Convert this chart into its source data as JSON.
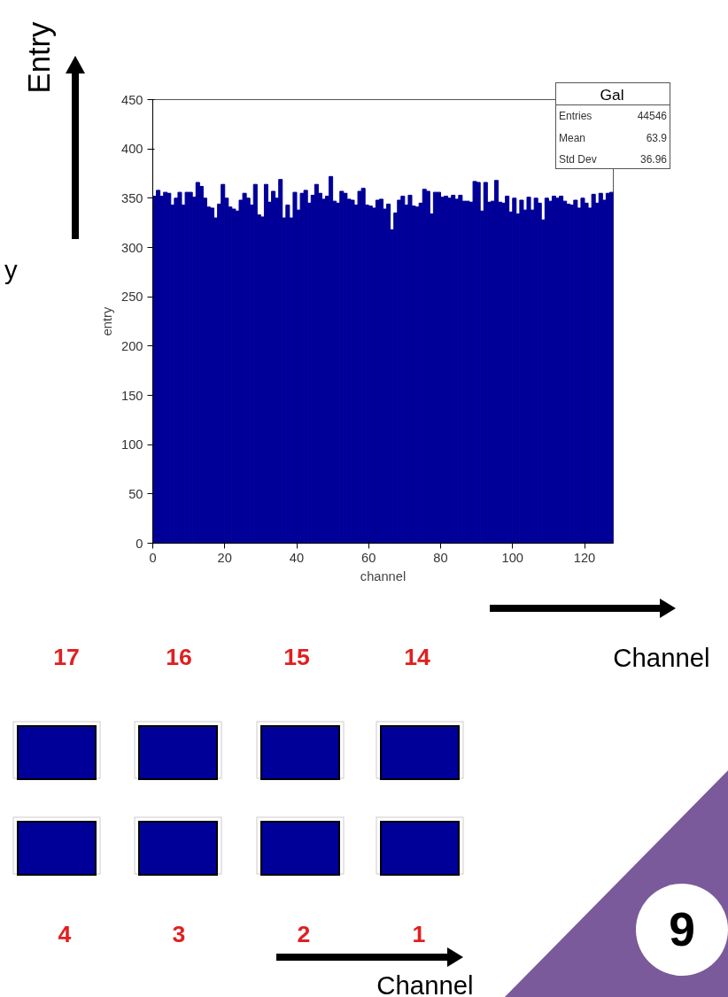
{
  "chart_data": {
    "type": "histogram",
    "xlabel": "channel",
    "ylabel": "entry",
    "color": "#000099",
    "grid": false,
    "bins": [
      0,
      1,
      2,
      3,
      4,
      5,
      6,
      7,
      8,
      9,
      10,
      11,
      12,
      13,
      14,
      15,
      16,
      17,
      18,
      19,
      20,
      21,
      22,
      23,
      24,
      25,
      26,
      27,
      28,
      29,
      30,
      31,
      32,
      33,
      34,
      35,
      36,
      37,
      38,
      39,
      40,
      41,
      42,
      43,
      44,
      45,
      46,
      47,
      48,
      49,
      50,
      51,
      52,
      53,
      54,
      55,
      56,
      57,
      58,
      59,
      60,
      61,
      62,
      63,
      64,
      65,
      66,
      67,
      68,
      69,
      70,
      71,
      72,
      73,
      74,
      75,
      76,
      77,
      78,
      79,
      80,
      81,
      82,
      83,
      84,
      85,
      86,
      87,
      88,
      89,
      90,
      91,
      92,
      93,
      94,
      95,
      96,
      97,
      98,
      99,
      100,
      101,
      102,
      103,
      104,
      105,
      106,
      107,
      108,
      109,
      110,
      111,
      112,
      113,
      114,
      115,
      116,
      117,
      118,
      119,
      120,
      121,
      122,
      123,
      124,
      125,
      126,
      127,
      128
    ],
    "values": [
      352,
      358,
      352,
      356,
      355,
      343,
      350,
      356,
      343,
      356,
      356,
      351,
      366,
      362,
      350,
      341,
      340,
      330,
      344,
      364,
      350,
      341,
      339,
      337,
      348,
      355,
      350,
      343,
      364,
      333,
      331,
      364,
      346,
      357,
      350,
      369,
      330,
      343,
      330,
      356,
      338,
      355,
      358,
      345,
      353,
      364,
      355,
      349,
      352,
      372,
      347,
      345,
      357,
      355,
      349,
      348,
      343,
      357,
      360,
      343,
      342,
      340,
      348,
      349,
      339,
      344,
      318,
      335,
      348,
      352,
      343,
      353,
      342,
      341,
      345,
      359,
      357,
      334,
      356,
      356,
      351,
      352,
      350,
      353,
      349,
      353,
      347,
      347,
      346,
      367,
      366,
      337,
      366,
      346,
      347,
      368,
      346,
      345,
      352,
      336,
      350,
      334,
      348,
      338,
      351,
      338,
      350,
      345,
      328,
      350,
      347,
      352,
      350,
      352,
      347,
      344,
      343,
      348,
      340,
      350,
      345,
      340,
      354,
      345,
      355,
      348,
      355,
      356
    ],
    "xlim": [
      0,
      128
    ],
    "ylim": [
      0,
      450
    ],
    "xticks": [
      0,
      20,
      40,
      60,
      80,
      100,
      120
    ],
    "yticks": [
      0,
      50,
      100,
      150,
      200,
      250,
      300,
      350,
      400,
      450
    ],
    "annotations": [
      "Entry",
      "y",
      "Gal",
      "Entries 44546",
      "Mean 63.9",
      "Std Dev 36.96",
      "Channel",
      "17",
      "16",
      "15",
      "14",
      "4",
      "3",
      "2",
      "1",
      "Channel",
      "9"
    ]
  }
}
